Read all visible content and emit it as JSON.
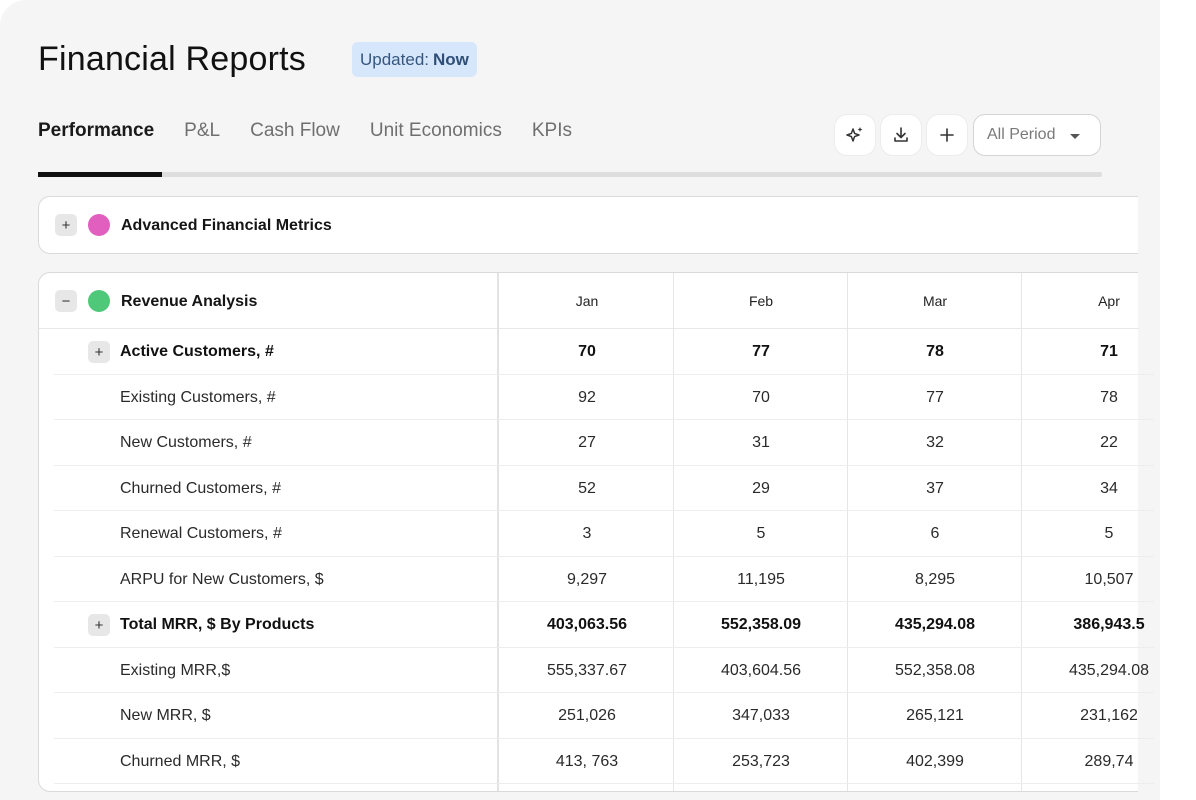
{
  "header": {
    "title": "Financial Reports",
    "badge_prefix": "Updated:",
    "badge_value": "Now"
  },
  "tabs": [
    {
      "label": "Performance",
      "active": true
    },
    {
      "label": "P&L"
    },
    {
      "label": "Cash Flow"
    },
    {
      "label": "Unit Economics"
    },
    {
      "label": "KPIs"
    }
  ],
  "toolbar": {
    "icons": [
      "sparkle-icon",
      "download-icon",
      "plus-icon"
    ],
    "period_select": "All Period"
  },
  "sections": {
    "advanced": {
      "toggle": "+",
      "title": "Advanced Financial Metrics",
      "color": "#e05fbf"
    },
    "revenue": {
      "toggle": "−",
      "title": "Revenue Analysis",
      "color": "#4fc87a"
    }
  },
  "table": {
    "columns": [
      "Jan",
      "Feb",
      "Mar",
      "Apr"
    ],
    "rows": [
      {
        "label": "Active Customers, #",
        "bold": true,
        "toggle": "+",
        "values": [
          "70",
          "77",
          "78",
          "71"
        ]
      },
      {
        "label": "Existing Customers, #",
        "values": [
          "92",
          "70",
          "77",
          "78"
        ]
      },
      {
        "label": "New Customers, #",
        "values": [
          "27",
          "31",
          "32",
          "22"
        ]
      },
      {
        "label": "Churned Customers, #",
        "values": [
          "52",
          "29",
          "37",
          "34"
        ]
      },
      {
        "label": "Renewal Customers, #",
        "values": [
          "3",
          "5",
          "6",
          "5"
        ]
      },
      {
        "label": "ARPU for New Customers, $",
        "values": [
          "9,297",
          "11,195",
          "8,295",
          "10,507"
        ]
      },
      {
        "label": "Total MRR, $ By Products",
        "bold": true,
        "toggle": "+",
        "values": [
          "403,063.56",
          "552,358.09",
          "435,294.08",
          "386,943.5"
        ]
      },
      {
        "label": "Existing MRR,$",
        "values": [
          "555,337.67",
          "403,604.56",
          "552,358.08",
          "435,294.08"
        ]
      },
      {
        "label": "New MRR, $",
        "values": [
          "251,026",
          "347,033",
          "265,121",
          "231,162"
        ]
      },
      {
        "label": "Churned MRR, $",
        "values": [
          "413, 763",
          "253,723",
          "402,399",
          "289,74"
        ]
      }
    ]
  }
}
